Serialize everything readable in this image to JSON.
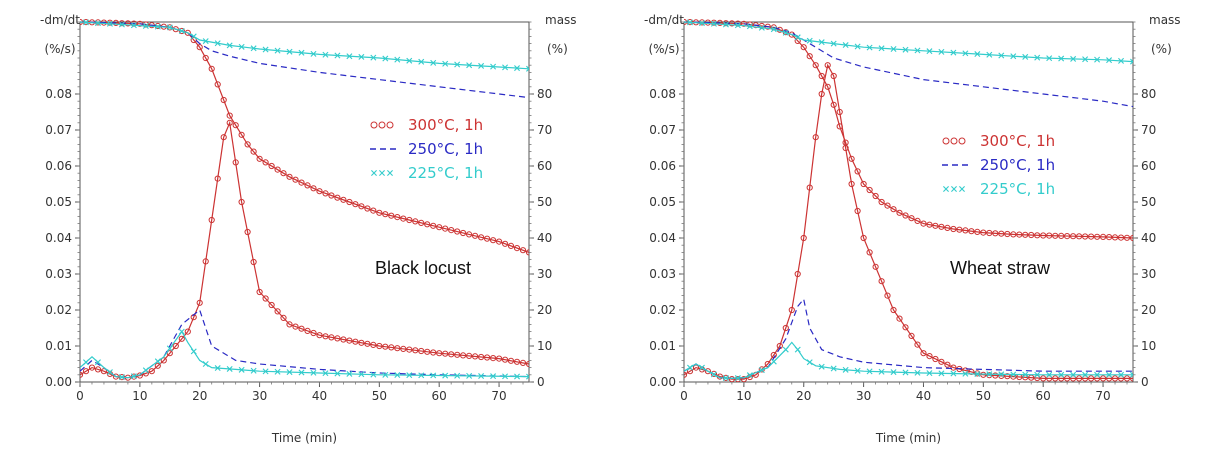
{
  "chart_data": [
    {
      "type": "line",
      "title": "Black locust",
      "xlabel": "Time (min)",
      "ylabel_left": "-dm/dt (%/s)",
      "ylabel_right": "mass (%)",
      "xlim": [
        0,
        75
      ],
      "ylim_left": [
        0,
        0.1
      ],
      "ylim_right": [
        0,
        100
      ],
      "xticks": [
        0,
        10,
        20,
        30,
        40,
        50,
        60,
        70
      ],
      "yticks_left": [
        "0.00",
        "0.01",
        "0.02",
        "0.03",
        "0.04",
        "0.05",
        "0.06",
        "0.07",
        "0.08"
      ],
      "yticks_right": [
        0,
        10,
        20,
        30,
        40,
        50,
        60,
        70,
        80
      ],
      "legend_position": "center-right",
      "series": [
        {
          "name": "300°C, 1h",
          "color": "#cc3333",
          "marker": "circle",
          "kind": "dtg",
          "x": [
            0,
            2,
            4,
            6,
            8,
            10,
            12,
            14,
            16,
            18,
            20,
            22,
            24,
            25,
            27,
            30,
            35,
            40,
            50,
            60,
            70,
            75
          ],
          "y": [
            0.002,
            0.004,
            0.003,
            0.0015,
            0.0012,
            0.0018,
            0.003,
            0.006,
            0.01,
            0.014,
            0.022,
            0.045,
            0.068,
            0.072,
            0.05,
            0.025,
            0.016,
            0.013,
            0.01,
            0.008,
            0.0065,
            0.005
          ]
        },
        {
          "name": "250°C, 1h",
          "color": "#2a2ac4",
          "marker": "dash",
          "kind": "dtg",
          "x": [
            0,
            2,
            4,
            6,
            8,
            10,
            14,
            17,
            20,
            22,
            26,
            30,
            40,
            50,
            60,
            75
          ],
          "y": [
            0.003,
            0.006,
            0.004,
            0.0015,
            0.0012,
            0.002,
            0.007,
            0.016,
            0.02,
            0.01,
            0.006,
            0.005,
            0.0035,
            0.0025,
            0.002,
            0.0015
          ]
        },
        {
          "name": "225°C, 1h",
          "color": "#33cccc",
          "marker": "x",
          "kind": "dtg",
          "x": [
            0,
            2,
            4,
            6,
            8,
            10,
            14,
            17,
            18,
            20,
            22,
            26,
            30,
            40,
            50,
            60,
            75
          ],
          "y": [
            0.004,
            0.007,
            0.004,
            0.0015,
            0.0012,
            0.002,
            0.007,
            0.014,
            0.011,
            0.006,
            0.004,
            0.0035,
            0.003,
            0.0025,
            0.002,
            0.0018,
            0.0015
          ]
        },
        {
          "name": "300°C, 1h",
          "color": "#cc3333",
          "marker": "circle",
          "kind": "mass",
          "x": [
            0,
            5,
            10,
            15,
            18,
            20,
            22,
            25,
            28,
            30,
            35,
            40,
            45,
            50,
            55,
            60,
            65,
            70,
            75
          ],
          "y": [
            100,
            99.8,
            99.5,
            98.5,
            97,
            93,
            87,
            74,
            66,
            62,
            57,
            53,
            50,
            47,
            45,
            43,
            41,
            39,
            36
          ]
        },
        {
          "name": "250°C, 1h",
          "color": "#2a2ac4",
          "marker": "dash",
          "kind": "mass",
          "x": [
            0,
            5,
            10,
            15,
            18,
            20,
            22,
            25,
            30,
            40,
            50,
            60,
            70,
            75
          ],
          "y": [
            100,
            99.8,
            99.5,
            98.5,
            97,
            94,
            92,
            90.5,
            88.5,
            86,
            84,
            82,
            80,
            79
          ]
        },
        {
          "name": "225°C, 1h",
          "color": "#33cccc",
          "marker": "x",
          "kind": "mass",
          "x": [
            0,
            5,
            10,
            15,
            18,
            20,
            25,
            30,
            40,
            50,
            60,
            70,
            75
          ],
          "y": [
            100,
            99.5,
            99,
            98.5,
            97,
            95,
            93.5,
            92.5,
            91,
            90,
            88.5,
            87.5,
            87
          ]
        }
      ]
    },
    {
      "type": "line",
      "title": "Wheat straw",
      "xlabel": "Time (min)",
      "ylabel_left": "-dm/dt (%/s)",
      "ylabel_right": "mass (%)",
      "xlim": [
        0,
        75
      ],
      "ylim_left": [
        0,
        0.1
      ],
      "ylim_right": [
        0,
        100
      ],
      "xticks": [
        0,
        10,
        20,
        30,
        40,
        50,
        60,
        70
      ],
      "yticks_left": [
        "0.00",
        "0.01",
        "0.02",
        "0.03",
        "0.04",
        "0.05",
        "0.06",
        "0.07",
        "0.08"
      ],
      "yticks_right": [
        0,
        10,
        20,
        30,
        40,
        50,
        60,
        70,
        80
      ],
      "legend_position": "center-right",
      "series": [
        {
          "name": "300°C, 1h",
          "color": "#cc3333",
          "marker": "circle",
          "kind": "dtg",
          "x": [
            0,
            2,
            4,
            6,
            8,
            10,
            12,
            14,
            16,
            18,
            20,
            22,
            23,
            24,
            25,
            26,
            28,
            30,
            35,
            40,
            45,
            50,
            55,
            60,
            70,
            75
          ],
          "y": [
            0.002,
            0.004,
            0.003,
            0.0015,
            0.0008,
            0.0008,
            0.002,
            0.005,
            0.01,
            0.02,
            0.04,
            0.068,
            0.08,
            0.088,
            0.085,
            0.075,
            0.055,
            0.04,
            0.02,
            0.008,
            0.004,
            0.002,
            0.0015,
            0.001,
            0.001,
            0.001
          ]
        },
        {
          "name": "250°C, 1h",
          "color": "#2a2ac4",
          "marker": "dash",
          "kind": "dtg",
          "x": [
            0,
            2,
            4,
            6,
            8,
            10,
            14,
            17,
            19,
            20,
            21,
            23,
            26,
            30,
            40,
            50,
            60,
            75
          ],
          "y": [
            0.003,
            0.005,
            0.003,
            0.0012,
            0.001,
            0.0012,
            0.004,
            0.012,
            0.021,
            0.023,
            0.015,
            0.009,
            0.007,
            0.0055,
            0.004,
            0.0035,
            0.003,
            0.003
          ]
        },
        {
          "name": "225°C, 1h",
          "color": "#33cccc",
          "marker": "x",
          "kind": "dtg",
          "x": [
            0,
            2,
            4,
            6,
            8,
            10,
            14,
            17,
            18,
            19,
            20,
            22,
            26,
            30,
            40,
            50,
            60,
            75
          ],
          "y": [
            0.003,
            0.005,
            0.003,
            0.0012,
            0.001,
            0.0012,
            0.004,
            0.009,
            0.011,
            0.009,
            0.0065,
            0.0045,
            0.0035,
            0.003,
            0.0025,
            0.0022,
            0.002,
            0.002
          ]
        },
        {
          "name": "300°C, 1h",
          "color": "#cc3333",
          "marker": "circle",
          "kind": "mass",
          "x": [
            0,
            5,
            10,
            15,
            18,
            20,
            22,
            24,
            25,
            26,
            28,
            30,
            33,
            36,
            40,
            45,
            50,
            55,
            60,
            65,
            70,
            75
          ],
          "y": [
            100,
            99.8,
            99.5,
            98.5,
            96.5,
            93,
            88,
            82,
            77,
            71,
            62,
            55,
            50,
            47,
            44,
            42.5,
            41.5,
            41,
            40.7,
            40.5,
            40.3,
            40
          ]
        },
        {
          "name": "250°C, 1h",
          "color": "#2a2ac4",
          "marker": "dash",
          "kind": "mass",
          "x": [
            0,
            5,
            10,
            15,
            18,
            20,
            22,
            25,
            30,
            40,
            50,
            60,
            70,
            75
          ],
          "y": [
            100,
            99.8,
            99.5,
            98.5,
            97,
            95,
            93,
            90,
            87.5,
            84,
            82,
            80,
            78,
            76.5
          ]
        },
        {
          "name": "225°C, 1h",
          "color": "#33cccc",
          "marker": "x",
          "kind": "mass",
          "x": [
            0,
            5,
            10,
            15,
            18,
            20,
            25,
            30,
            40,
            50,
            60,
            70,
            75
          ],
          "y": [
            100,
            99.5,
            99,
            98,
            96.5,
            95,
            94,
            93,
            92,
            91,
            90,
            89.5,
            89
          ]
        }
      ]
    }
  ]
}
